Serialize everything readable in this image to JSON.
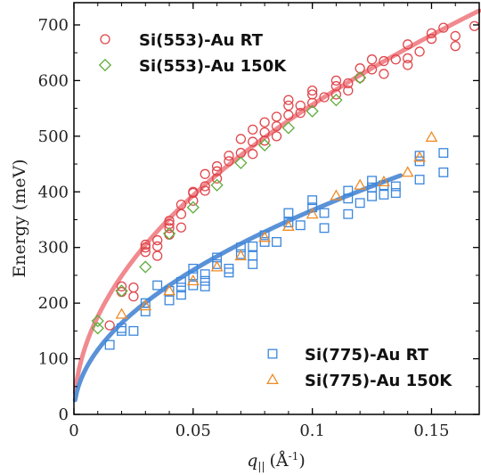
{
  "chart_data": {
    "type": "scatter",
    "xlabel": "q",
    "xlabel_subscript": "||",
    "xlabel_unit": "(Å",
    "xlabel_unit_exp": "-1",
    "xlabel_unit_close": ")",
    "ylabel": "Energy (meV)",
    "xlim": [
      0,
      0.17
    ],
    "ylim": [
      0,
      740
    ],
    "xticks": [
      0,
      0.05,
      0.1,
      0.15
    ],
    "xtick_labels": [
      "0",
      "0.05",
      "0.1",
      "0.15"
    ],
    "yticks": [
      0,
      100,
      200,
      300,
      400,
      500,
      600,
      700
    ],
    "ytick_labels": [
      "0",
      "100",
      "200",
      "300",
      "400",
      "500",
      "600",
      "700"
    ],
    "legend_top": [
      "Si(553)-Au RT",
      "Si(553)-Au 150K"
    ],
    "legend_bottom": [
      "Si(775)-Au RT",
      "Si(775)-Au 150K"
    ],
    "series": [
      {
        "name": "Si(553)-Au RT",
        "marker": "circle",
        "color": "#e0474c",
        "points": [
          [
            0.015,
            160
          ],
          [
            0.02,
            230
          ],
          [
            0.02,
            220
          ],
          [
            0.025,
            228
          ],
          [
            0.025,
            212
          ],
          [
            0.03,
            305
          ],
          [
            0.03,
            300
          ],
          [
            0.03,
            292
          ],
          [
            0.035,
            313
          ],
          [
            0.035,
            302
          ],
          [
            0.035,
            285
          ],
          [
            0.04,
            348
          ],
          [
            0.04,
            342
          ],
          [
            0.04,
            335
          ],
          [
            0.04,
            323
          ],
          [
            0.045,
            377
          ],
          [
            0.045,
            360
          ],
          [
            0.045,
            336
          ],
          [
            0.05,
            400
          ],
          [
            0.05,
            398
          ],
          [
            0.05,
            384
          ],
          [
            0.055,
            432
          ],
          [
            0.055,
            410
          ],
          [
            0.055,
            402
          ],
          [
            0.06,
            446
          ],
          [
            0.06,
            437
          ],
          [
            0.06,
            424
          ],
          [
            0.065,
            465
          ],
          [
            0.065,
            455
          ],
          [
            0.07,
            495
          ],
          [
            0.07,
            470
          ],
          [
            0.075,
            512
          ],
          [
            0.075,
            490
          ],
          [
            0.075,
            468
          ],
          [
            0.08,
            525
          ],
          [
            0.08,
            507
          ],
          [
            0.08,
            492
          ],
          [
            0.085,
            535
          ],
          [
            0.085,
            518
          ],
          [
            0.085,
            500
          ],
          [
            0.09,
            565
          ],
          [
            0.09,
            555
          ],
          [
            0.09,
            538
          ],
          [
            0.095,
            555
          ],
          [
            0.095,
            542
          ],
          [
            0.1,
            582
          ],
          [
            0.1,
            575
          ],
          [
            0.1,
            560
          ],
          [
            0.105,
            570
          ],
          [
            0.11,
            600
          ],
          [
            0.11,
            590
          ],
          [
            0.11,
            575
          ],
          [
            0.115,
            595
          ],
          [
            0.115,
            582
          ],
          [
            0.12,
            622
          ],
          [
            0.12,
            605
          ],
          [
            0.125,
            638
          ],
          [
            0.125,
            620
          ],
          [
            0.13,
            635
          ],
          [
            0.13,
            612
          ],
          [
            0.135,
            638
          ],
          [
            0.14,
            665
          ],
          [
            0.14,
            640
          ],
          [
            0.14,
            628
          ],
          [
            0.145,
            652
          ],
          [
            0.15,
            685
          ],
          [
            0.15,
            675
          ],
          [
            0.155,
            695
          ],
          [
            0.16,
            680
          ],
          [
            0.16,
            662
          ],
          [
            0.168,
            698
          ]
        ]
      },
      {
        "name": "Si(553)-Au 150K",
        "marker": "diamond",
        "color": "#5fad3c",
        "points": [
          [
            0.01,
            168
          ],
          [
            0.01,
            155
          ],
          [
            0.02,
            222
          ],
          [
            0.03,
            265
          ],
          [
            0.04,
            325
          ],
          [
            0.05,
            372
          ],
          [
            0.06,
            412
          ],
          [
            0.07,
            452
          ],
          [
            0.08,
            484
          ],
          [
            0.09,
            515
          ],
          [
            0.1,
            545
          ],
          [
            0.11,
            565
          ],
          [
            0.12,
            605
          ]
        ]
      },
      {
        "name": "Si(775)-Au RT",
        "marker": "square",
        "color": "#3a86dd",
        "points": [
          [
            0.015,
            125
          ],
          [
            0.02,
            155
          ],
          [
            0.02,
            150
          ],
          [
            0.025,
            150
          ],
          [
            0.03,
            200
          ],
          [
            0.03,
            185
          ],
          [
            0.035,
            232
          ],
          [
            0.04,
            222
          ],
          [
            0.04,
            205
          ],
          [
            0.045,
            238
          ],
          [
            0.045,
            228
          ],
          [
            0.045,
            215
          ],
          [
            0.05,
            262
          ],
          [
            0.05,
            250
          ],
          [
            0.05,
            232
          ],
          [
            0.055,
            252
          ],
          [
            0.055,
            240
          ],
          [
            0.055,
            230
          ],
          [
            0.06,
            282
          ],
          [
            0.06,
            270
          ],
          [
            0.065,
            262
          ],
          [
            0.065,
            255
          ],
          [
            0.07,
            300
          ],
          [
            0.07,
            288
          ],
          [
            0.075,
            302
          ],
          [
            0.075,
            285
          ],
          [
            0.075,
            270
          ],
          [
            0.08,
            322
          ],
          [
            0.08,
            310
          ],
          [
            0.085,
            310
          ],
          [
            0.09,
            362
          ],
          [
            0.09,
            345
          ],
          [
            0.095,
            340
          ],
          [
            0.1,
            385
          ],
          [
            0.1,
            372
          ],
          [
            0.105,
            362
          ],
          [
            0.105,
            335
          ],
          [
            0.115,
            402
          ],
          [
            0.115,
            388
          ],
          [
            0.115,
            360
          ],
          [
            0.12,
            380
          ],
          [
            0.125,
            420
          ],
          [
            0.125,
            408
          ],
          [
            0.125,
            392
          ],
          [
            0.13,
            412
          ],
          [
            0.13,
            395
          ],
          [
            0.135,
            410
          ],
          [
            0.135,
            398
          ],
          [
            0.145,
            465
          ],
          [
            0.145,
            455
          ],
          [
            0.145,
            422
          ],
          [
            0.155,
            470
          ],
          [
            0.155,
            435
          ]
        ]
      },
      {
        "name": "Si(775)-Au 150K",
        "marker": "triangle",
        "color": "#f08a24",
        "points": [
          [
            0.02,
            180
          ],
          [
            0.03,
            195
          ],
          [
            0.04,
            222
          ],
          [
            0.05,
            240
          ],
          [
            0.06,
            265
          ],
          [
            0.07,
            285
          ],
          [
            0.08,
            318
          ],
          [
            0.09,
            338
          ],
          [
            0.1,
            360
          ],
          [
            0.11,
            393
          ],
          [
            0.12,
            412
          ],
          [
            0.13,
            418
          ],
          [
            0.14,
            435
          ],
          [
            0.145,
            462
          ],
          [
            0.15,
            498
          ]
        ]
      }
    ],
    "fits": [
      {
        "color": "#f08a8f",
        "coef": 1760,
        "exponent": 0.5,
        "x_range": [
          0.0005,
          0.17
        ]
      },
      {
        "color": "#5a92d8",
        "coef": 1160,
        "exponent": 0.5,
        "x_range": [
          0.0005,
          0.137
        ]
      }
    ]
  }
}
